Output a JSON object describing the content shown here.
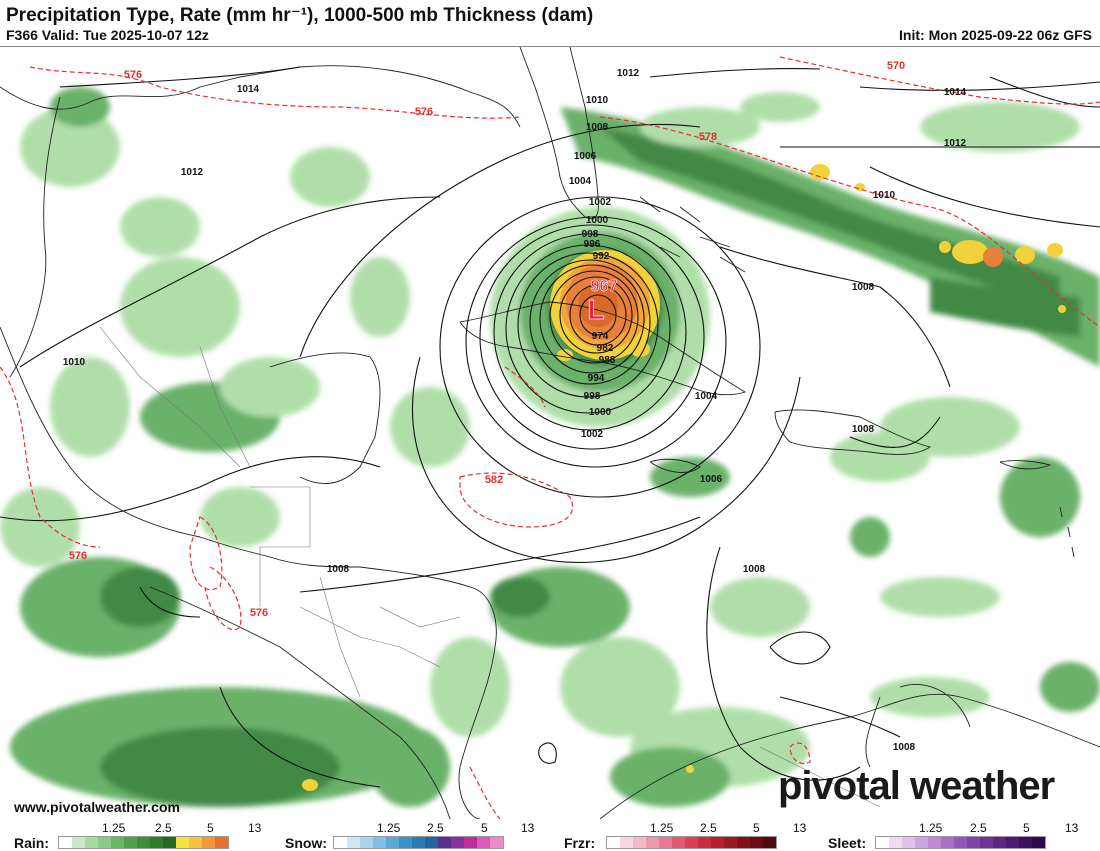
{
  "header": {
    "title": "Precipitation Type, Rate (mm hr⁻¹), 1000-500 mb Thickness (dam)",
    "valid": "F366 Valid: Tue 2025-10-07 12z",
    "init": "Init: Mon 2025-09-22 06z GFS"
  },
  "map": {
    "low_symbol": "L",
    "low_pressure": "967",
    "isobar_labels": [
      "1014",
      "1012",
      "1010",
      "1008",
      "1006",
      "1004",
      "1002",
      "1000",
      "998",
      "996",
      "992",
      "974",
      "982",
      "988",
      "994",
      "998",
      "1000",
      "1002",
      "1004",
      "1006",
      "1008",
      "1008",
      "1008",
      "1008",
      "1010",
      "1010",
      "1012",
      "1012",
      "1014",
      "1008"
    ],
    "thickness_labels": [
      "576",
      "576",
      "570",
      "578",
      "582",
      "576",
      "576"
    ],
    "colors": {
      "rain_light": "#a8dba0",
      "rain_mid": "#5aa95a",
      "rain_dark": "#2e7d32",
      "heavy": "#f2d23a",
      "very_heavy": "#e8803c",
      "thickness": "#e23030",
      "isobar": "#111111"
    }
  },
  "footer": {
    "website": "www.pivotalweather.com",
    "brand": "pivotal weather"
  },
  "legend": {
    "rain": {
      "label": "Rain:",
      "ticks": [
        "1.25",
        "2.5",
        "5",
        "13"
      ],
      "colors": [
        "#ffffff",
        "#c6ebc4",
        "#a3dba0",
        "#86cc82",
        "#67b863",
        "#4ea34a",
        "#3a8f37",
        "#2e7d2a",
        "#256a22",
        "#f3e43a",
        "#f6c33a",
        "#f39a36",
        "#ea6f2a"
      ]
    },
    "snow": {
      "label": "Snow:",
      "ticks": [
        "1.25",
        "2.5",
        "5",
        "13"
      ],
      "colors": [
        "#ffffff",
        "#cfe8f6",
        "#a9d5ef",
        "#80c0e6",
        "#5aa9db",
        "#3d92cc",
        "#2a7bb8",
        "#2066a3",
        "#5a2e8c",
        "#8a2ea0",
        "#c22a9e",
        "#dd5ab8",
        "#ea8ccc"
      ]
    },
    "frzr": {
      "label": "Frzr:",
      "ticks": [
        "1.25",
        "2.5",
        "5",
        "13"
      ],
      "colors": [
        "#ffffff",
        "#f9d7e2",
        "#f4b8c8",
        "#ef98ad",
        "#ea7891",
        "#e45a72",
        "#dc3e55",
        "#cc2a3e",
        "#b81e2e",
        "#9f1624",
        "#85101c",
        "#6c0c16",
        "#540810"
      ]
    },
    "sleet": {
      "label": "Sleet:",
      "ticks": [
        "1.25",
        "2.5",
        "5",
        "13"
      ],
      "colors": [
        "#ffffff",
        "#efdcf4",
        "#e0c1ec",
        "#cfa4e2",
        "#bd88d6",
        "#aa6ec9",
        "#9656bb",
        "#8242ab",
        "#6f3299",
        "#5d2586",
        "#4c1a72",
        "#3c115e",
        "#2d0a4a"
      ]
    }
  }
}
